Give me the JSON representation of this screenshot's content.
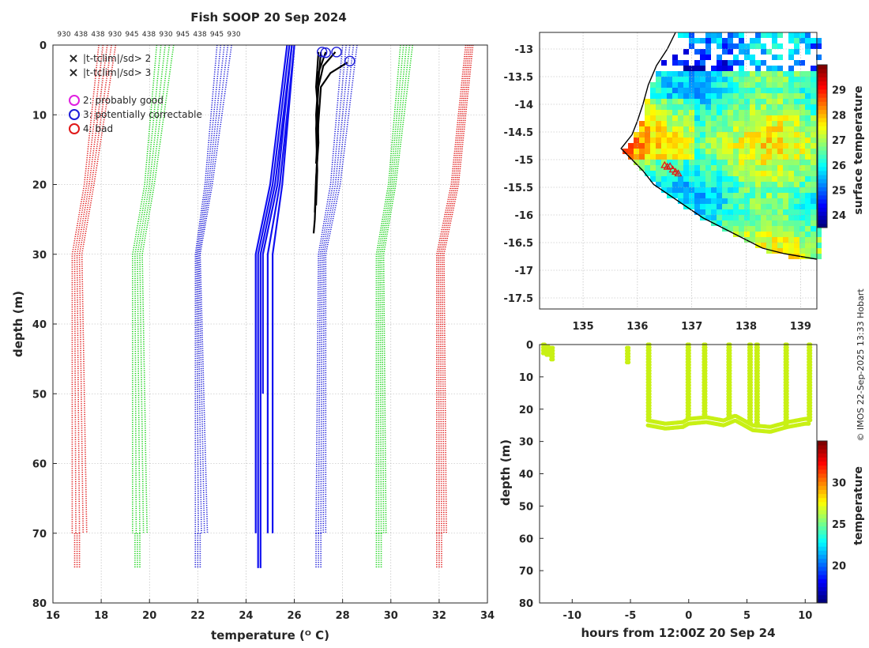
{
  "figure": {
    "title": "Fish SOOP 20 Sep 2024",
    "watermark": "© IMOS 22-Sep-2025 13:33 Hobart"
  },
  "colors": {
    "qc_green": "#19d219",
    "qc_red": "#e01818",
    "qc_blue": "#1c1cd8",
    "qc_magenta": "#e020e0",
    "profile_blue": "#1010f0",
    "profile_black": "#000000",
    "ts_dots": "#c8f014"
  },
  "chart_data": [
    {
      "id": "profile",
      "type": "line",
      "title": "Fish SOOP 20 Sep 2024",
      "xlabel": "temperature (ᴼ C)",
      "ylabel": "depth (m)",
      "xlim": [
        16,
        34
      ],
      "ylim": [
        80,
        0
      ],
      "xticks": [
        16,
        18,
        20,
        22,
        24,
        26,
        28,
        30,
        32,
        34
      ],
      "yticks": [
        0,
        10,
        20,
        30,
        40,
        50,
        60,
        70,
        80
      ],
      "grid": true,
      "top_labels": [
        "930",
        "438",
        "438",
        "930",
        "945",
        "438",
        "930",
        "945",
        "438",
        "945",
        "930"
      ],
      "legend": {
        "position": "top-left",
        "markers": [
          {
            "label": "|t-tclim|/sd> 2",
            "symbol": "x",
            "color": "#19d219"
          },
          {
            "label": "|t-tclim|/sd> 3",
            "symbol": "x",
            "color": "#e01818"
          }
        ],
        "flags": [
          {
            "label": "2: probably good",
            "symbol": "o",
            "color": "#e020e0"
          },
          {
            "label": "3: potentially correctable",
            "symbol": "o",
            "color": "#1c1cd8"
          },
          {
            "label": "4: bad",
            "symbol": "o",
            "color": "#e01818"
          }
        ]
      },
      "climatology_bands": [
        {
          "side": "left",
          "sigma": 3,
          "color": "#e01818",
          "top": [
            17.9,
            18.6
          ],
          "d20": [
            17.3,
            17.7
          ],
          "d30": [
            16.8,
            17.2
          ],
          "d70": [
            16.8,
            17.4
          ],
          "d75": [
            16.9,
            17.1
          ]
        },
        {
          "side": "left",
          "sigma": 2,
          "color": "#19d219",
          "top": [
            20.3,
            21.0
          ],
          "d20": [
            19.8,
            20.2
          ],
          "d30": [
            19.3,
            19.7
          ],
          "d70": [
            19.3,
            19.9
          ],
          "d75": [
            19.4,
            19.6
          ]
        },
        {
          "side": "left",
          "sigma": 1,
          "color": "#1c1cd8",
          "top": [
            22.8,
            23.4
          ],
          "d20": [
            22.3,
            22.6
          ],
          "d30": [
            21.9,
            22.1
          ],
          "d70": [
            21.9,
            22.4
          ],
          "d75": [
            21.9,
            22.1
          ]
        },
        {
          "side": "right",
          "sigma": 1,
          "color": "#1c1cd8",
          "top": [
            28.0,
            28.6
          ],
          "d20": [
            27.5,
            27.9
          ],
          "d30": [
            27.0,
            27.3
          ],
          "d70": [
            26.9,
            27.3
          ],
          "d75": [
            26.9,
            27.1
          ]
        },
        {
          "side": "right",
          "sigma": 2,
          "color": "#19d219",
          "top": [
            30.4,
            30.9
          ],
          "d20": [
            29.9,
            30.2
          ],
          "d30": [
            29.4,
            29.7
          ],
          "d70": [
            29.4,
            29.8
          ],
          "d75": [
            29.4,
            29.6
          ]
        },
        {
          "side": "right",
          "sigma": 3,
          "color": "#e01818",
          "top": [
            33.1,
            33.4
          ],
          "d20": [
            32.5,
            32.8
          ],
          "d30": [
            31.9,
            32.2
          ],
          "d70": [
            31.9,
            32.3
          ],
          "d75": [
            31.9,
            32.1
          ]
        }
      ],
      "mean_profiles": [
        {
          "color": "#1010f0",
          "points": [
            [
              25.7,
              0
            ],
            [
              25.0,
              20
            ],
            [
              24.4,
              30
            ],
            [
              24.4,
              70
            ]
          ]
        },
        {
          "color": "#1010f0",
          "points": [
            [
              25.8,
              0
            ],
            [
              25.1,
              20
            ],
            [
              24.5,
              30
            ],
            [
              24.5,
              75
            ]
          ]
        },
        {
          "color": "#1010f0",
          "points": [
            [
              25.9,
              0
            ],
            [
              25.2,
              20
            ],
            [
              24.6,
              30
            ],
            [
              24.6,
              75
            ]
          ]
        },
        {
          "color": "#1010f0",
          "points": [
            [
              25.9,
              0
            ],
            [
              25.3,
              20
            ],
            [
              24.7,
              30
            ],
            [
              24.7,
              50
            ]
          ]
        },
        {
          "color": "#1010f0",
          "points": [
            [
              26.0,
              0
            ],
            [
              25.4,
              20
            ],
            [
              24.9,
              30
            ],
            [
              24.9,
              70
            ]
          ]
        },
        {
          "color": "#1010f0",
          "points": [
            [
              26.0,
              0
            ],
            [
              25.5,
              20
            ],
            [
              25.1,
              30
            ],
            [
              25.1,
              70
            ]
          ]
        }
      ],
      "observed_profiles": [
        {
          "color": "#000000",
          "points": [
            [
              27.1,
              1
            ],
            [
              27.0,
              5
            ],
            [
              26.9,
              10
            ],
            [
              26.95,
              15
            ],
            [
              26.9,
              20
            ],
            [
              26.85,
              25
            ],
            [
              26.8,
              27
            ]
          ]
        },
        {
          "color": "#000000",
          "points": [
            [
              27.3,
              1
            ],
            [
              27.0,
              4
            ],
            [
              26.95,
              8
            ],
            [
              27.0,
              14
            ],
            [
              26.9,
              19
            ],
            [
              26.85,
              24
            ]
          ]
        },
        {
          "color": "#000000",
          "points": [
            [
              27.7,
              1
            ],
            [
              27.2,
              3
            ],
            [
              27.0,
              6
            ],
            [
              26.9,
              12
            ],
            [
              26.95,
              18
            ],
            [
              26.9,
              23
            ]
          ]
        },
        {
          "color": "#000000",
          "points": [
            [
              28.2,
              2.5
            ],
            [
              27.5,
              4
            ],
            [
              27.1,
              6
            ],
            [
              27.0,
              11
            ],
            [
              26.9,
              17
            ]
          ]
        },
        {
          "color": "#000000",
          "points": [
            [
              27.0,
              1
            ],
            [
              26.9,
              6
            ],
            [
              27.0,
              10
            ],
            [
              26.95,
              16
            ],
            [
              26.9,
              22
            ]
          ]
        }
      ],
      "flag_points": [
        {
          "x": 27.15,
          "y": 1.0,
          "flag": 3
        },
        {
          "x": 27.3,
          "y": 1.1,
          "flag": 3
        },
        {
          "x": 27.75,
          "y": 1.0,
          "flag": 3
        },
        {
          "x": 28.3,
          "y": 2.3,
          "flag": 3
        }
      ]
    },
    {
      "id": "map",
      "type": "heatmap",
      "title": "",
      "colorbar_label": "surface temperature",
      "xlim": [
        134.2,
        139.3
      ],
      "ylim": [
        -17.7,
        -12.7
      ],
      "xticks": [
        135,
        136,
        137,
        138,
        139
      ],
      "yticks": [
        -13,
        -13.5,
        -14,
        -14.5,
        -15,
        -15.5,
        -16,
        -16.5,
        -17,
        -17.5
      ],
      "clim": [
        23.5,
        30
      ],
      "colorbar_ticks": [
        24,
        25,
        26,
        27,
        28,
        29
      ],
      "coastline": [
        [
          139.3,
          -16.8
        ],
        [
          139.0,
          -16.75
        ],
        [
          138.7,
          -16.7
        ],
        [
          138.3,
          -16.6
        ],
        [
          138.0,
          -16.45
        ],
        [
          137.6,
          -16.25
        ],
        [
          137.2,
          -16.05
        ],
        [
          136.9,
          -15.85
        ],
        [
          136.6,
          -15.65
        ],
        [
          136.3,
          -15.45
        ],
        [
          136.1,
          -15.2
        ],
        [
          135.9,
          -15.0
        ],
        [
          135.7,
          -14.8
        ],
        [
          135.9,
          -14.55
        ],
        [
          136.0,
          -14.3
        ],
        [
          136.1,
          -14.0
        ],
        [
          136.2,
          -13.65
        ],
        [
          136.35,
          -13.3
        ],
        [
          136.55,
          -13.0
        ],
        [
          136.7,
          -12.7
        ]
      ],
      "ship_positions": [
        [
          136.5,
          -15.1
        ],
        [
          136.55,
          -15.13
        ],
        [
          136.6,
          -15.12
        ],
        [
          136.65,
          -15.18
        ],
        [
          136.7,
          -15.22
        ],
        [
          136.75,
          -15.25
        ]
      ]
    },
    {
      "id": "timeseries",
      "type": "scatter",
      "title": "",
      "xlabel": "hours from 12:00Z 20 Sep 24",
      "ylabel": "depth (m)",
      "colorbar_label": "temperature",
      "xlim": [
        -12.8,
        11
      ],
      "ylim": [
        80,
        0
      ],
      "xticks": [
        -10,
        -5,
        0,
        5,
        10
      ],
      "yticks": [
        0,
        10,
        20,
        30,
        40,
        50,
        60,
        70,
        80
      ],
      "clim": [
        15.5,
        35
      ],
      "colorbar_ticks": [
        20,
        25,
        30
      ],
      "bottom_depth": [
        [
          -3.5,
          23.5
        ],
        [
          -2.0,
          24.5
        ],
        [
          -0.5,
          24
        ],
        [
          0.0,
          23
        ],
        [
          1.5,
          22.5
        ],
        [
          3.0,
          23.5
        ],
        [
          4.0,
          22
        ],
        [
          5.5,
          25
        ],
        [
          7.0,
          25.5
        ],
        [
          8.5,
          24
        ],
        [
          10.0,
          23
        ]
      ],
      "casts": [
        {
          "x": -12.5,
          "top": 0,
          "bottom": 3
        },
        {
          "x": -12.2,
          "top": 0.5,
          "bottom": 4
        },
        {
          "x": -11.8,
          "top": 1,
          "bottom": 5
        },
        {
          "x": -5.3,
          "top": 1,
          "bottom": 6
        },
        {
          "x": -3.5,
          "top": 0,
          "bottom": 23.5
        },
        {
          "x": -0.1,
          "top": 0,
          "bottom": 22.5
        },
        {
          "x": 1.3,
          "top": 0,
          "bottom": 23
        },
        {
          "x": 3.4,
          "top": 0,
          "bottom": 22.5
        },
        {
          "x": 5.2,
          "top": 0,
          "bottom": 25
        },
        {
          "x": 5.8,
          "top": 0,
          "bottom": 25.5
        },
        {
          "x": 8.3,
          "top": 0,
          "bottom": 25.5
        },
        {
          "x": 10.3,
          "top": 0,
          "bottom": 24
        }
      ]
    }
  ]
}
